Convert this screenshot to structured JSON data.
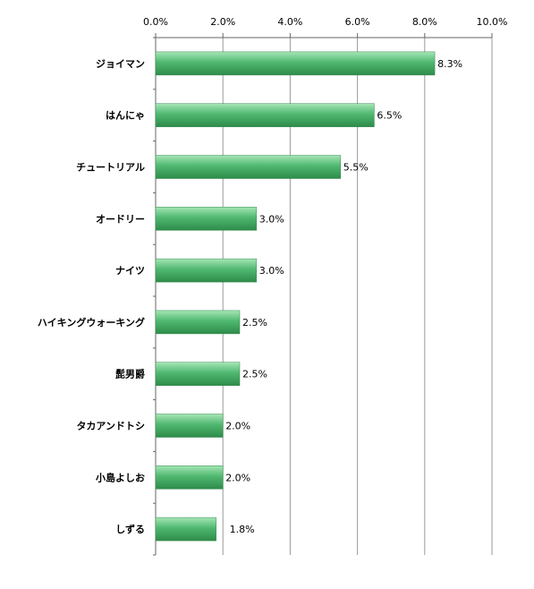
{
  "chart_data": {
    "type": "bar",
    "orientation": "horizontal",
    "categories": [
      "ジョイマン",
      "はんにゃ",
      "チュートリアル",
      "オードリー",
      "ナイツ",
      "ハイキングウォーキング",
      "髭男爵",
      "タカアンドトシ",
      "小島よしお",
      "しずる"
    ],
    "values": [
      8.3,
      6.5,
      5.5,
      3.0,
      3.0,
      2.5,
      2.5,
      2.0,
      2.0,
      1.8
    ],
    "data_labels": [
      "8.3%",
      "6.5%",
      "5.5%",
      "3.0%",
      "3.0%",
      "2.5%",
      "2.5%",
      "2.0%",
      "2.0%",
      "1.8%"
    ],
    "x_ticks": [
      "0.0%",
      "2.0%",
      "4.0%",
      "6.0%",
      "8.0%",
      "10.0%"
    ],
    "xlim": [
      0,
      10
    ],
    "x_axis_position": "top",
    "grid": "vertical",
    "legend": "none",
    "bar_color": "#4fb870",
    "bar_highlight": "#a6e6b6",
    "bar_shadow": "#2e8b4a",
    "title": "",
    "xlabel": "",
    "ylabel": ""
  }
}
